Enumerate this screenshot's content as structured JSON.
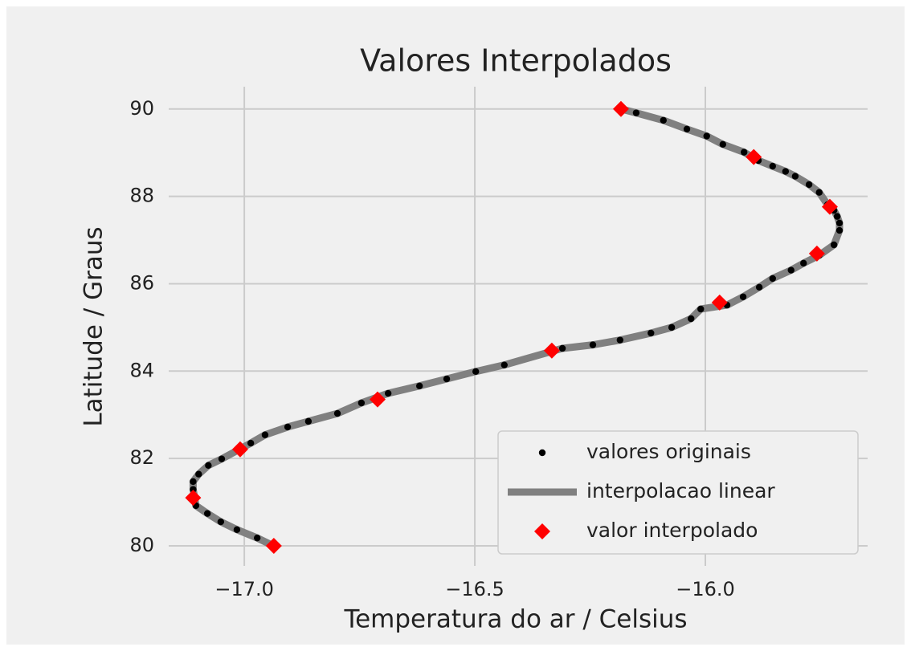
{
  "chart_data": {
    "type": "scatter",
    "title": "Valores Interpolados",
    "x_label": "Temperatura do ar / Celsius",
    "y_label": "Latitude / Graus",
    "xlim": [
      -17.164,
      -15.648
    ],
    "ylim": [
      79.54,
      90.51
    ],
    "xticks": [
      {
        "value": -17.0,
        "label": "−17.0"
      },
      {
        "value": -16.5,
        "label": "−16.5"
      },
      {
        "value": -16.0,
        "label": "−16.0"
      }
    ],
    "yticks": [
      80,
      82,
      84,
      86,
      88,
      90
    ],
    "grid": true,
    "legend": "lower right",
    "series": [
      {
        "name": "valores originais",
        "style": "dot",
        "color": "#000000",
        "x": [
          -16.15,
          -16.091,
          -16.04,
          -15.997,
          -15.962,
          -15.916,
          -15.885,
          -15.854,
          -15.826,
          -15.805,
          -15.775,
          -15.753,
          -15.735,
          -15.721,
          -15.714,
          -15.709,
          -15.709,
          -15.721,
          -15.753,
          -15.787,
          -15.814,
          -15.854,
          -15.883,
          -15.918,
          -15.953,
          -16.01,
          -16.031,
          -16.073,
          -16.118,
          -16.185,
          -16.244,
          -16.31,
          -16.436,
          -16.498,
          -16.561,
          -16.62,
          -16.688,
          -16.746,
          -16.798,
          -16.861,
          -16.906,
          -16.955,
          -16.986,
          -17.049,
          -17.078,
          -17.099,
          -17.111,
          -17.111,
          -17.105,
          -17.08,
          -17.051,
          -17.016,
          -16.972,
          -16.937
        ],
        "y": [
          89.91,
          89.74,
          89.54,
          89.38,
          89.19,
          89.01,
          88.82,
          88.69,
          88.57,
          88.46,
          88.27,
          88.09,
          87.81,
          87.68,
          87.54,
          87.39,
          87.22,
          86.89,
          86.65,
          86.47,
          86.31,
          86.12,
          85.92,
          85.7,
          85.51,
          85.42,
          85.2,
          85.0,
          84.87,
          84.71,
          84.6,
          84.52,
          84.14,
          83.99,
          83.82,
          83.66,
          83.49,
          83.27,
          83.03,
          82.85,
          82.72,
          82.54,
          82.35,
          81.99,
          81.84,
          81.64,
          81.47,
          81.29,
          80.92,
          80.74,
          80.55,
          80.37,
          80.18,
          80.0
        ]
      },
      {
        "name": "interpolacao linear",
        "style": "line",
        "color": "#808080",
        "x": [
          -16.183,
          -16.15,
          -16.091,
          -16.04,
          -15.997,
          -15.962,
          -15.916,
          -15.885,
          -15.854,
          -15.826,
          -15.805,
          -15.775,
          -15.753,
          -15.735,
          -15.721,
          -15.714,
          -15.709,
          -15.709,
          -15.721,
          -15.753,
          -15.787,
          -15.814,
          -15.854,
          -15.883,
          -15.918,
          -15.953,
          -16.01,
          -16.031,
          -16.073,
          -16.118,
          -16.185,
          -16.244,
          -16.31,
          -16.436,
          -16.498,
          -16.561,
          -16.62,
          -16.688,
          -16.746,
          -16.798,
          -16.861,
          -16.906,
          -16.955,
          -16.986,
          -17.049,
          -17.078,
          -17.099,
          -17.111,
          -17.111,
          -17.105,
          -17.08,
          -17.051,
          -17.016,
          -16.972,
          -16.937
        ],
        "y": [
          90.0,
          89.91,
          89.74,
          89.54,
          89.38,
          89.19,
          89.01,
          88.82,
          88.69,
          88.57,
          88.46,
          88.27,
          88.09,
          87.81,
          87.68,
          87.54,
          87.39,
          87.22,
          86.89,
          86.65,
          86.47,
          86.31,
          86.12,
          85.92,
          85.7,
          85.51,
          85.42,
          85.2,
          85.0,
          84.87,
          84.71,
          84.6,
          84.52,
          84.14,
          83.99,
          83.82,
          83.66,
          83.49,
          83.27,
          83.03,
          82.85,
          82.72,
          82.54,
          82.35,
          81.99,
          81.84,
          81.64,
          81.47,
          81.29,
          80.92,
          80.74,
          80.55,
          80.37,
          80.18,
          80.0
        ]
      },
      {
        "name": "valor interpolado",
        "style": "diamond",
        "color": "#ff0000",
        "x": [
          -16.183,
          -15.895,
          -15.73,
          -15.758,
          -15.969,
          -16.333,
          -16.711,
          -17.009,
          -17.111,
          -16.936
        ],
        "y": [
          90.0,
          88.9,
          87.76,
          86.69,
          85.57,
          84.47,
          83.35,
          82.21,
          81.1,
          80.0
        ]
      }
    ]
  }
}
